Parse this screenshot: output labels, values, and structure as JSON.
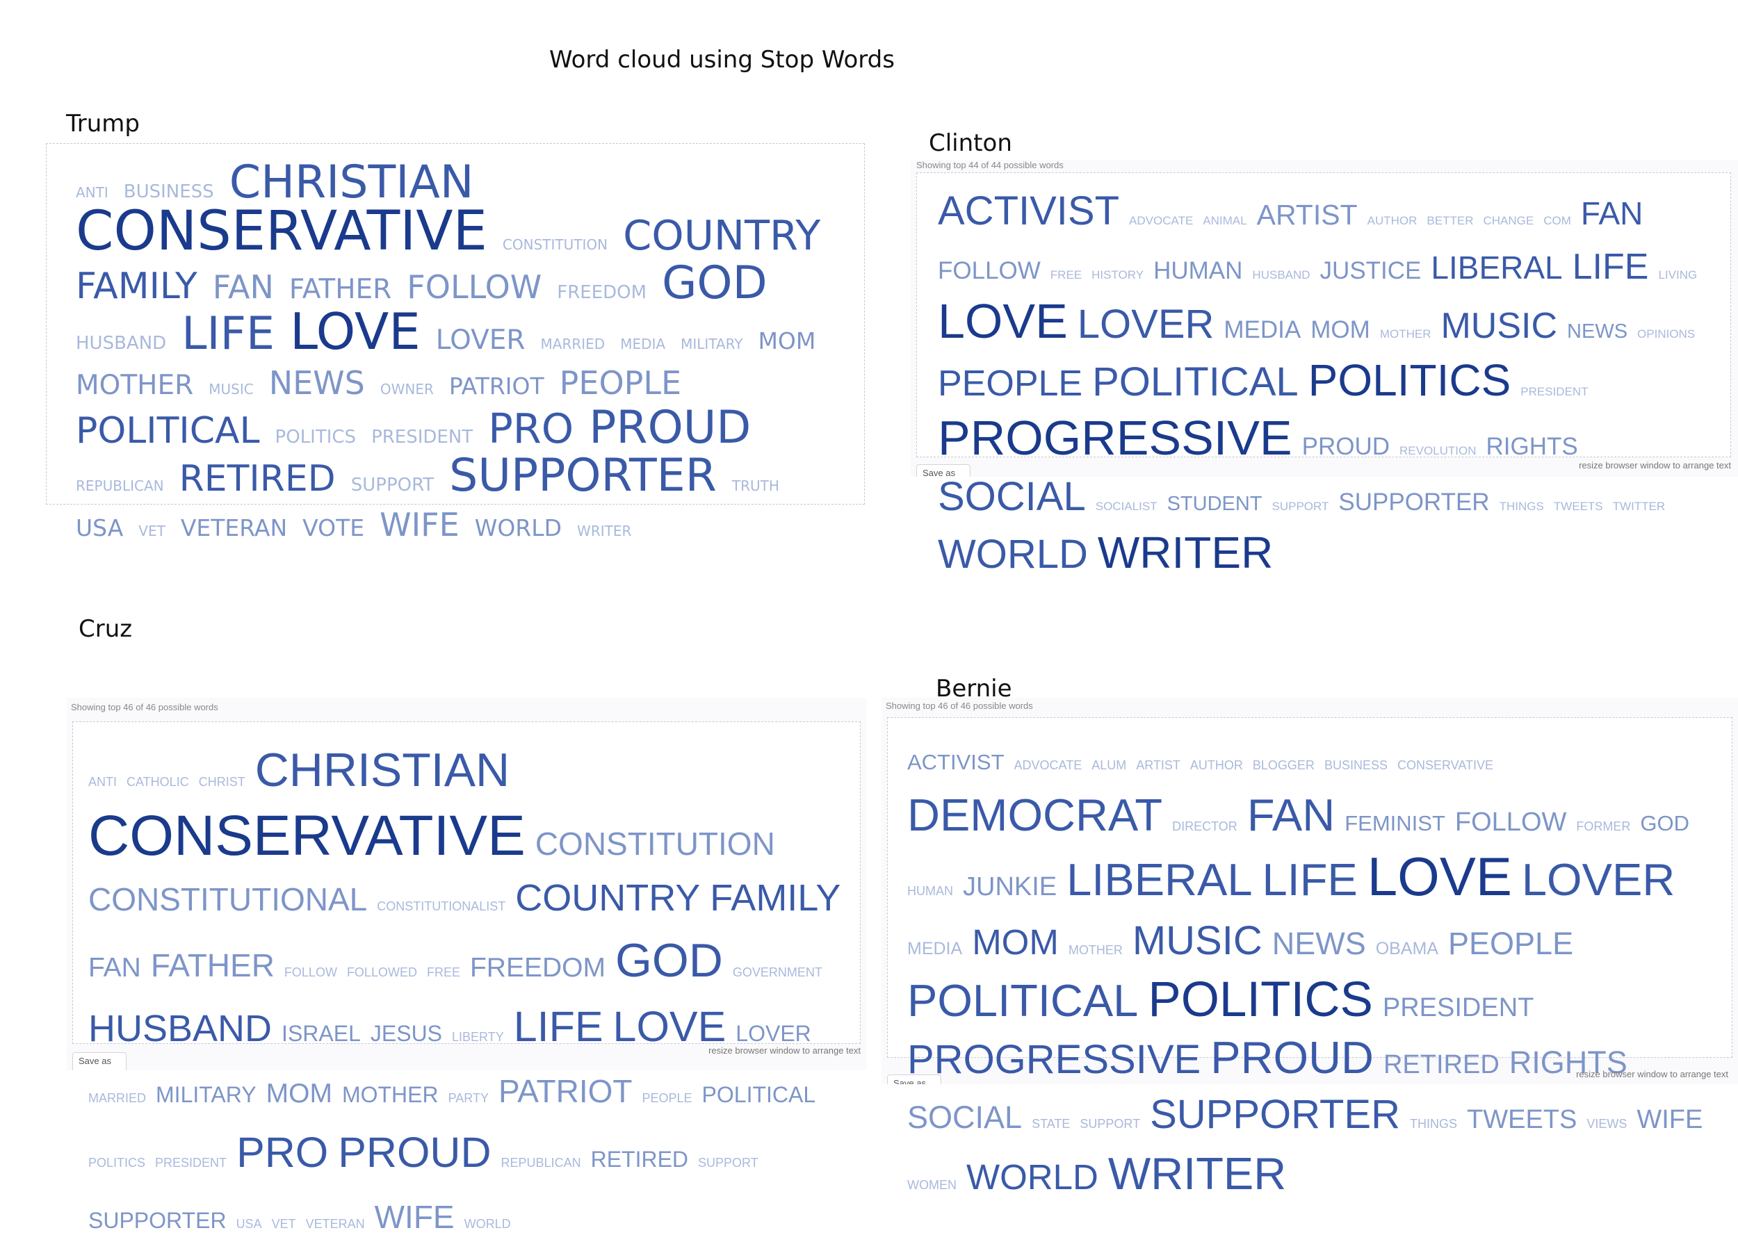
{
  "page_title": "Word cloud using Stop Words",
  "clouds": {
    "trump": {
      "label": "Trump",
      "words": [
        {
          "t": "ANTI",
          "s": 1
        },
        {
          "t": "BUSINESS",
          "s": 2
        },
        {
          "t": "CHRISTIAN",
          "s": 8
        },
        {
          "t": "CONSERVATIVE",
          "s": 10
        },
        {
          "t": "CONSTITUTION",
          "s": 1
        },
        {
          "t": "COUNTRY",
          "s": 7
        },
        {
          "t": "FAMILY",
          "s": 6
        },
        {
          "t": "FAN",
          "s": 5
        },
        {
          "t": "FATHER",
          "s": 4
        },
        {
          "t": "FOLLOW",
          "s": 5
        },
        {
          "t": "FREEDOM",
          "s": 2
        },
        {
          "t": "GOD",
          "s": 8
        },
        {
          "t": "HUSBAND",
          "s": 2
        },
        {
          "t": "LIFE",
          "s": 8
        },
        {
          "t": "LOVE",
          "s": 9
        },
        {
          "t": "LOVER",
          "s": 4
        },
        {
          "t": "MARRIED",
          "s": 1
        },
        {
          "t": "MEDIA",
          "s": 1
        },
        {
          "t": "MILITARY",
          "s": 1
        },
        {
          "t": "MOM",
          "s": 3
        },
        {
          "t": "MOTHER",
          "s": 4
        },
        {
          "t": "MUSIC",
          "s": 1
        },
        {
          "t": "NEWS",
          "s": 5
        },
        {
          "t": "OWNER",
          "s": 1
        },
        {
          "t": "PATRIOT",
          "s": 3
        },
        {
          "t": "PEOPLE",
          "s": 5
        },
        {
          "t": "POLITICAL",
          "s": 6
        },
        {
          "t": "POLITICS",
          "s": 2
        },
        {
          "t": "PRESIDENT",
          "s": 2
        },
        {
          "t": "PRO",
          "s": 7
        },
        {
          "t": "PROUD",
          "s": 8
        },
        {
          "t": "REPUBLICAN",
          "s": 1
        },
        {
          "t": "RETIRED",
          "s": 6
        },
        {
          "t": "SUPPORT",
          "s": 2
        },
        {
          "t": "SUPPORTER",
          "s": 8
        },
        {
          "t": "TRUTH",
          "s": 1
        },
        {
          "t": "USA",
          "s": 3
        },
        {
          "t": "VET",
          "s": 1
        },
        {
          "t": "VETERAN",
          "s": 3
        },
        {
          "t": "VOTE",
          "s": 3
        },
        {
          "t": "WIFE",
          "s": 5
        },
        {
          "t": "WORLD",
          "s": 3
        },
        {
          "t": "WRITER",
          "s": 1
        }
      ]
    },
    "clinton": {
      "label": "Clinton",
      "showing": "Showing top 44 of 44 possible words",
      "resize_hint": "resize browser window to arrange text",
      "save_label": "Save as",
      "words": [
        {
          "t": "ACTIVIST",
          "s": 8
        },
        {
          "t": "ADVOCATE",
          "s": 1
        },
        {
          "t": "ANIMAL",
          "s": 1
        },
        {
          "t": "ARTIST",
          "s": 5
        },
        {
          "t": "AUTHOR",
          "s": 1
        },
        {
          "t": "BETTER",
          "s": 1
        },
        {
          "t": "CHANGE",
          "s": 1
        },
        {
          "t": "COM",
          "s": 1
        },
        {
          "t": "FAN",
          "s": 6
        },
        {
          "t": "FOLLOW",
          "s": 4
        },
        {
          "t": "FREE",
          "s": 1
        },
        {
          "t": "HISTORY",
          "s": 1
        },
        {
          "t": "HUMAN",
          "s": 4
        },
        {
          "t": "HUSBAND",
          "s": 1
        },
        {
          "t": "JUSTICE",
          "s": 4
        },
        {
          "t": "LIBERAL",
          "s": 6
        },
        {
          "t": "LIFE",
          "s": 7
        },
        {
          "t": "LIVING",
          "s": 1
        },
        {
          "t": "LOVE",
          "s": 10
        },
        {
          "t": "LOVER",
          "s": 8
        },
        {
          "t": "MEDIA",
          "s": 4
        },
        {
          "t": "MOM",
          "s": 4
        },
        {
          "t": "MOTHER",
          "s": 1
        },
        {
          "t": "MUSIC",
          "s": 7
        },
        {
          "t": "NEWS",
          "s": 3
        },
        {
          "t": "OPINIONS",
          "s": 1
        },
        {
          "t": "PEOPLE",
          "s": 7
        },
        {
          "t": "POLITICAL",
          "s": 8
        },
        {
          "t": "POLITICS",
          "s": 9
        },
        {
          "t": "PRESIDENT",
          "s": 1
        },
        {
          "t": "PROGRESSIVE",
          "s": 10
        },
        {
          "t": "PROUD",
          "s": 4
        },
        {
          "t": "REVOLUTION",
          "s": 1
        },
        {
          "t": "RIGHTS",
          "s": 4
        },
        {
          "t": "SOCIAL",
          "s": 8
        },
        {
          "t": "SOCIALIST",
          "s": 1
        },
        {
          "t": "STUDENT",
          "s": 3
        },
        {
          "t": "SUPPORT",
          "s": 1
        },
        {
          "t": "SUPPORTER",
          "s": 4
        },
        {
          "t": "THINGS",
          "s": 1
        },
        {
          "t": "TWEETS",
          "s": 1
        },
        {
          "t": "TWITTER",
          "s": 1
        },
        {
          "t": "WORLD",
          "s": 8
        },
        {
          "t": "WRITER",
          "s": 9
        }
      ]
    },
    "cruz": {
      "label": "Cruz",
      "showing": "Showing top 46 of 46 possible words",
      "resize_hint": "resize browser window to arrange text",
      "save_label": "Save as",
      "words": [
        {
          "t": "ANTI",
          "s": 1
        },
        {
          "t": "CATHOLIC",
          "s": 1
        },
        {
          "t": "CHRIST",
          "s": 1
        },
        {
          "t": "CHRISTIAN",
          "s": 8
        },
        {
          "t": "CONSERVATIVE",
          "s": 10
        },
        {
          "t": "CONSTITUTION",
          "s": 5
        },
        {
          "t": "CONSTITUTIONAL",
          "s": 5
        },
        {
          "t": "CONSTITUTIONALIST",
          "s": 1
        },
        {
          "t": "COUNTRY",
          "s": 6
        },
        {
          "t": "FAMILY",
          "s": 6
        },
        {
          "t": "FAN",
          "s": 4
        },
        {
          "t": "FATHER",
          "s": 5
        },
        {
          "t": "FOLLOW",
          "s": 1
        },
        {
          "t": "FOLLOWED",
          "s": 1
        },
        {
          "t": "FREE",
          "s": 1
        },
        {
          "t": "FREEDOM",
          "s": 4
        },
        {
          "t": "GOD",
          "s": 8
        },
        {
          "t": "GOVERNMENT",
          "s": 1
        },
        {
          "t": "HUSBAND",
          "s": 6
        },
        {
          "t": "ISRAEL",
          "s": 3
        },
        {
          "t": "JESUS",
          "s": 3
        },
        {
          "t": "LIBERTY",
          "s": 1
        },
        {
          "t": "LIFE",
          "s": 7
        },
        {
          "t": "LOVE",
          "s": 7
        },
        {
          "t": "LOVER",
          "s": 3
        },
        {
          "t": "MARRIED",
          "s": 1
        },
        {
          "t": "MILITARY",
          "s": 3
        },
        {
          "t": "MOM",
          "s": 4
        },
        {
          "t": "MOTHER",
          "s": 3
        },
        {
          "t": "PARTY",
          "s": 1
        },
        {
          "t": "PATRIOT",
          "s": 5
        },
        {
          "t": "PEOPLE",
          "s": 1
        },
        {
          "t": "POLITICAL",
          "s": 3
        },
        {
          "t": "POLITICS",
          "s": 1
        },
        {
          "t": "PRESIDENT",
          "s": 1
        },
        {
          "t": "PRO",
          "s": 7
        },
        {
          "t": "PROUD",
          "s": 7
        },
        {
          "t": "REPUBLICAN",
          "s": 1
        },
        {
          "t": "RETIRED",
          "s": 3
        },
        {
          "t": "SUPPORT",
          "s": 1
        },
        {
          "t": "SUPPORTER",
          "s": 3
        },
        {
          "t": "USA",
          "s": 1
        },
        {
          "t": "VET",
          "s": 1
        },
        {
          "t": "VETERAN",
          "s": 1
        },
        {
          "t": "WIFE",
          "s": 5
        },
        {
          "t": "WORLD",
          "s": 1
        }
      ]
    },
    "bernie": {
      "label": "Bernie",
      "showing": "Showing top 46 of 46 possible words",
      "resize_hint": "resize browser window to arrange text",
      "save_label": "Save as",
      "words": [
        {
          "t": "ACTIVIST",
          "s": 3
        },
        {
          "t": "ADVOCATE",
          "s": 1
        },
        {
          "t": "ALUM",
          "s": 1
        },
        {
          "t": "ARTIST",
          "s": 1
        },
        {
          "t": "AUTHOR",
          "s": 1
        },
        {
          "t": "BLOGGER",
          "s": 1
        },
        {
          "t": "BUSINESS",
          "s": 1
        },
        {
          "t": "CONSERVATIVE",
          "s": 1
        },
        {
          "t": "DEMOCRAT",
          "s": 8
        },
        {
          "t": "DIRECTOR",
          "s": 1
        },
        {
          "t": "FAN",
          "s": 8
        },
        {
          "t": "FEMINIST",
          "s": 3
        },
        {
          "t": "FOLLOW",
          "s": 4
        },
        {
          "t": "FORMER",
          "s": 1
        },
        {
          "t": "GOD",
          "s": 3
        },
        {
          "t": "HUMAN",
          "s": 1
        },
        {
          "t": "JUNKIE",
          "s": 4
        },
        {
          "t": "LIBERAL",
          "s": 8
        },
        {
          "t": "LIFE",
          "s": 8
        },
        {
          "t": "LOVE",
          "s": 10
        },
        {
          "t": "LOVER",
          "s": 8
        },
        {
          "t": "MEDIA",
          "s": 2
        },
        {
          "t": "MOM",
          "s": 6
        },
        {
          "t": "MOTHER",
          "s": 1
        },
        {
          "t": "MUSIC",
          "s": 7
        },
        {
          "t": "NEWS",
          "s": 5
        },
        {
          "t": "OBAMA",
          "s": 2
        },
        {
          "t": "PEOPLE",
          "s": 5
        },
        {
          "t": "POLITICAL",
          "s": 8
        },
        {
          "t": "POLITICS",
          "s": 9
        },
        {
          "t": "PRESIDENT",
          "s": 4
        },
        {
          "t": "PROGRESSIVE",
          "s": 7
        },
        {
          "t": "PROUD",
          "s": 8
        },
        {
          "t": "RETIRED",
          "s": 4
        },
        {
          "t": "RIGHTS",
          "s": 5
        },
        {
          "t": "SOCIAL",
          "s": 5
        },
        {
          "t": "STATE",
          "s": 1
        },
        {
          "t": "SUPPORT",
          "s": 1
        },
        {
          "t": "SUPPORTER",
          "s": 7
        },
        {
          "t": "THINGS",
          "s": 1
        },
        {
          "t": "TWEETS",
          "s": 4
        },
        {
          "t": "VIEWS",
          "s": 1
        },
        {
          "t": "WIFE",
          "s": 4
        },
        {
          "t": "WOMEN",
          "s": 1
        },
        {
          "t": "WORLD",
          "s": 6
        },
        {
          "t": "WRITER",
          "s": 8
        }
      ]
    }
  },
  "colors": {
    "dark": "#1a3a8c",
    "mid": "#3a5aa8",
    "light": "#7d95c8",
    "pale": "#a9b9dc"
  }
}
